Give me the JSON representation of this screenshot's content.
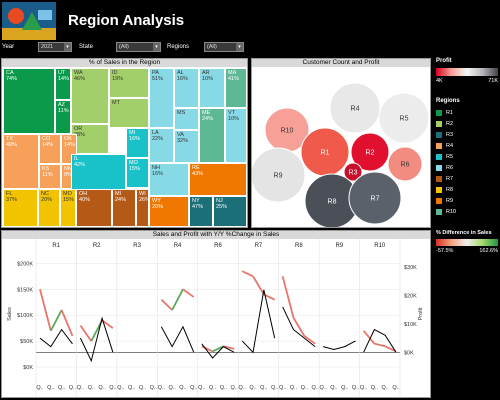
{
  "header": {
    "title": "Region Analysis"
  },
  "filters": [
    {
      "label": "Year",
      "value": "2021"
    },
    {
      "label": "State",
      "value": "(All)"
    },
    {
      "label": "Regions",
      "value": "(All)"
    }
  ],
  "treemap": {
    "title": "% of Sales in the Region",
    "cells": [
      {
        "label": "CA\n74%",
        "color": "#0a9a4a"
      },
      {
        "label": "UT\n14%",
        "color": "#0a9a4a"
      },
      {
        "label": "AZ\n11%",
        "color": "#0a9a4a"
      },
      {
        "label": "WA\n46%",
        "color": "#a3cf6a"
      },
      {
        "label": "OR\n28%",
        "color": "#a3cf6a"
      },
      {
        "label": "ID\n19%",
        "color": "#a3cf6a"
      },
      {
        "label": "MT",
        "color": "#a3cf6a"
      },
      {
        "label": "TX\n49%",
        "color": "#f6a05a"
      },
      {
        "label": "CO\n14%",
        "color": "#f6a05a"
      },
      {
        "label": "OK\n14%",
        "color": "#f6a05a"
      },
      {
        "label": "KS\n11%",
        "color": "#f6a05a"
      },
      {
        "label": "NM\n8%",
        "color": "#f6a05a"
      },
      {
        "label": "IL\n42%",
        "color": "#19c2c9"
      },
      {
        "label": "MI\n16%",
        "color": "#19c2c9"
      },
      {
        "label": "MN\n12%",
        "color": "#19c2c9"
      },
      {
        "label": "MO\n15%",
        "color": "#19c2c9"
      },
      {
        "label": "FL\n37%",
        "color": "#f2c400"
      },
      {
        "label": "NC\n20%",
        "color": "#f2c400"
      },
      {
        "label": "MO\n15%",
        "color": "#f2c400"
      },
      {
        "label": "GA\n22%",
        "color": "#f2c400"
      },
      {
        "label": "OH\n40%",
        "color": "#b55a16"
      },
      {
        "label": "MI\n24%",
        "color": "#b55a16"
      },
      {
        "label": "WI\n26%",
        "color": "#b55a16"
      },
      {
        "label": "IN\n22%",
        "color": "#b55a16"
      },
      {
        "label": "KY",
        "color": "#b55a16"
      },
      {
        "label": "PA\n51%",
        "color": "#87d9e6"
      },
      {
        "label": "LA\n22%",
        "color": "#87d9e6"
      },
      {
        "label": "AL\n16%",
        "color": "#87d9e6"
      },
      {
        "label": "MS",
        "color": "#87d9e6"
      },
      {
        "label": "VA\n32%",
        "color": "#87d9e6"
      },
      {
        "label": "AR\n10%",
        "color": "#87d9e6"
      },
      {
        "label": "MA\n41%",
        "color": "#5eb894"
      },
      {
        "label": "ME\n24%",
        "color": "#5eb894"
      },
      {
        "label": "VT\n10%",
        "color": "#87d9e6"
      },
      {
        "label": "NH\n16%",
        "color": "#87d9e6"
      },
      {
        "label": "RE\n43%",
        "color": "#f07800"
      },
      {
        "label": "SD\n27%",
        "color": "#f07800"
      },
      {
        "label": "WY\n20%",
        "color": "#f07800"
      },
      {
        "label": "NY\n47%",
        "color": "#1c6f78"
      },
      {
        "label": "NJ\n25%",
        "color": "#1c6f78"
      },
      {
        "label": "PA\n21%",
        "color": "#1c6f78"
      }
    ]
  },
  "bubbles": {
    "title": "Customer Count and Profit",
    "items": [
      {
        "label": "R4",
        "color": "#e8e8e8"
      },
      {
        "label": "R5",
        "color": "#ececec"
      },
      {
        "label": "R10",
        "color": "#f6a097"
      },
      {
        "label": "R1",
        "color": "#f05a4a"
      },
      {
        "label": "R2",
        "color": "#e0102e"
      },
      {
        "label": "R3",
        "color": "#c8102e"
      },
      {
        "label": "R6",
        "color": "#f28c80"
      },
      {
        "label": "R9",
        "color": "#e4e4e4"
      },
      {
        "label": "R8",
        "color": "#4a4f58"
      },
      {
        "label": "R7",
        "color": "#5b616b"
      }
    ]
  },
  "profit_legend": {
    "title": "Profit",
    "min": "4K",
    "max": "71K"
  },
  "regions_legend": {
    "title": "Regions",
    "items": [
      {
        "label": "R1",
        "color": "#0a9a4a"
      },
      {
        "label": "R2",
        "color": "#a3cf6a"
      },
      {
        "label": "R3",
        "color": "#1c6f78"
      },
      {
        "label": "R4",
        "color": "#f6a05a"
      },
      {
        "label": "R5",
        "color": "#19c2c9"
      },
      {
        "label": "R6",
        "color": "#87d9e6"
      },
      {
        "label": "R7",
        "color": "#b55a16"
      },
      {
        "label": "R8",
        "color": "#f2c400"
      },
      {
        "label": "R9",
        "color": "#f07800"
      },
      {
        "label": "R10",
        "color": "#5eb894"
      }
    ]
  },
  "diff_legend": {
    "title": "% Difference in Sales",
    "min": "-57.5%",
    "max": "162.6%"
  },
  "chart_data": {
    "type": "line",
    "title": "Sales and Profit with Y/Y %Change in Sales",
    "categories": [
      "R1",
      "R2",
      "R3",
      "R4",
      "R6",
      "R7",
      "R8",
      "R9",
      "R10"
    ],
    "ylabel": "Sales",
    "y2label": "Profit",
    "y_ticks": [
      "$0K",
      "$50K",
      "$100K",
      "$150K",
      "$200K"
    ],
    "y2_ticks": [
      "$0K",
      "$10K",
      "$20K",
      "$30K"
    ],
    "x_tick_label": "Q..",
    "sales_series": [
      [
        150,
        70,
        110,
        60
      ],
      [
        80,
        50,
        90,
        75
      ],
      [],
      [
        130,
        110,
        150,
        135
      ],
      [
        40,
        30,
        40,
        35
      ],
      [
        185,
        175,
        140,
        130
      ],
      [
        175,
        95,
        60,
        45
      ],
      [],
      [
        70,
        45,
        40,
        30
      ]
    ],
    "profit_series": [
      [
        5,
        2,
        8,
        3
      ],
      [
        5,
        -3,
        12,
        0
      ],
      [],
      [
        9,
        2,
        9,
        0
      ],
      [
        3,
        -2,
        2,
        0
      ],
      [
        4,
        0,
        22,
        5
      ],
      [
        16,
        8,
        5,
        2
      ],
      [
        2,
        1,
        2,
        4
      ],
      [
        0,
        8,
        6,
        0
      ]
    ]
  }
}
